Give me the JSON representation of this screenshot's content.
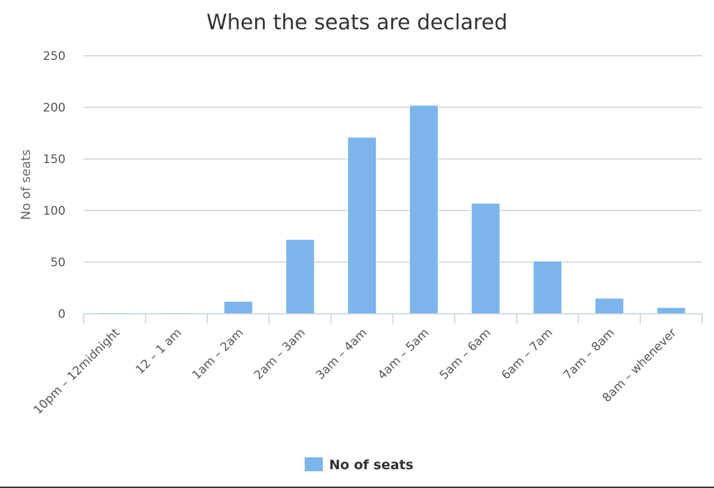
{
  "chart_data": {
    "type": "bar",
    "title": "When the seats are declared",
    "xlabel": "",
    "ylabel": "No of seats",
    "ylim": [
      0,
      250
    ],
    "yticks": [
      0,
      50,
      100,
      150,
      200,
      250
    ],
    "grid": true,
    "legend": "bottom-center",
    "categories": [
      "10pm – 12midnight",
      "12 – 1 am",
      "1am – 2am",
      "2am – 3am",
      "3am – 4am",
      "4am – 5am",
      "5am – 6am",
      "6am – 7am",
      "7am – 8am",
      "8am – whenever"
    ],
    "series": [
      {
        "name": "No of seats",
        "color": "#7cb5ec",
        "values": [
          1,
          1,
          12,
          72,
          171,
          202,
          107,
          51,
          15,
          6
        ]
      }
    ]
  }
}
